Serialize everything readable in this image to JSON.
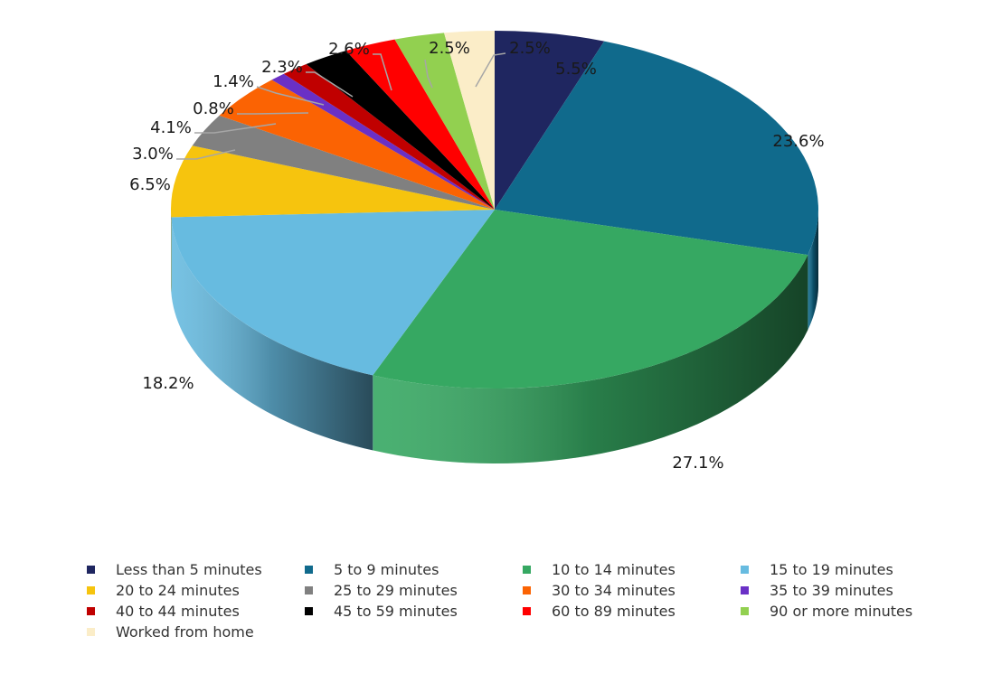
{
  "chart_data": {
    "type": "pie",
    "style": "3d",
    "categories": [
      "Less than 5 minutes",
      "5 to 9 minutes",
      "10 to 14 minutes",
      "15 to 19 minutes",
      "20 to 24 minutes",
      "25 to 29 minutes",
      "30 to 34 minutes",
      "35 to 39 minutes",
      "40 to 44 minutes",
      "45 to 59 minutes",
      "60 to 89 minutes",
      "90 or more minutes",
      "Worked from home"
    ],
    "values": [
      5.5,
      23.6,
      27.1,
      18.2,
      6.5,
      3.0,
      4.1,
      0.8,
      1.4,
      2.3,
      2.6,
      2.5,
      2.5
    ],
    "labels": [
      "5.5%",
      "23.6%",
      "27.1%",
      "18.2%",
      "6.5%",
      "3.0%",
      "4.1%",
      "0.8%",
      "1.4%",
      "2.3%",
      "2.6%",
      "2.5%",
      "2.5%"
    ],
    "colors": [
      "#1F2660",
      "#106A8C",
      "#36A862",
      "#67BBE0",
      "#F6C40E",
      "#808080",
      "#FB6303",
      "#6A30C6",
      "#C00000",
      "#000000",
      "#FF0000",
      "#92D050",
      "#FBEDC8"
    ],
    "legend_position": "bottom",
    "title": ""
  }
}
